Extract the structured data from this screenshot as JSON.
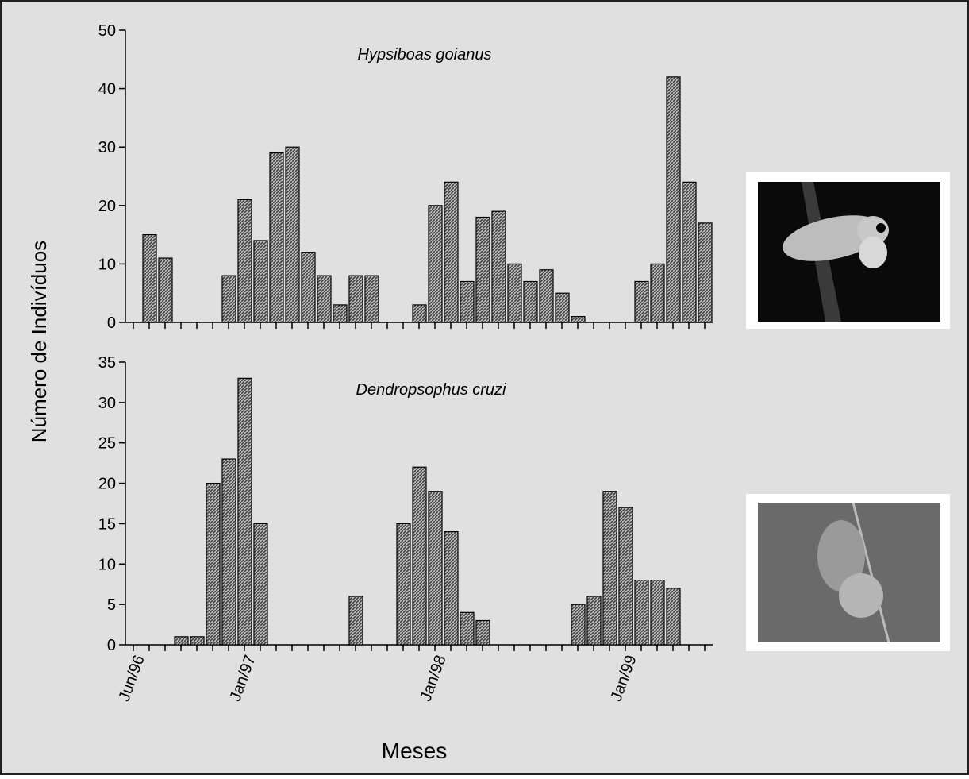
{
  "chart_data": [
    {
      "type": "bar",
      "title": "Hypsiboas goianus",
      "y_label": "Número de Indivíduos",
      "color": "#444444",
      "values": [
        0,
        15,
        11,
        0,
        0,
        0,
        8,
        21,
        14,
        29,
        30,
        12,
        8,
        3,
        8,
        8,
        0,
        0,
        3,
        20,
        24,
        7,
        18,
        19,
        10,
        7,
        9,
        5,
        1,
        0,
        0,
        0,
        7,
        10,
        42,
        24,
        17
      ],
      "ylim": [
        0,
        50
      ],
      "yticks": [
        0,
        10,
        20,
        30,
        40,
        50
      ]
    },
    {
      "type": "bar",
      "title": "Dendropsophus cruzi",
      "x_label": "Meses",
      "color": "#444444",
      "categories": [
        "Jun/96",
        null,
        null,
        null,
        null,
        null,
        null,
        "Jan/97",
        null,
        null,
        null,
        null,
        null,
        null,
        null,
        null,
        null,
        null,
        null,
        "Jan/98",
        null,
        null,
        null,
        null,
        null,
        null,
        null,
        null,
        null,
        null,
        null,
        "Jan/99",
        null,
        null,
        null,
        null,
        null
      ],
      "values": [
        0,
        0,
        0,
        1,
        1,
        20,
        23,
        33,
        15,
        0,
        0,
        0,
        0,
        0,
        6,
        0,
        0,
        15,
        22,
        19,
        14,
        4,
        3,
        0,
        0,
        0,
        0,
        0,
        5,
        6,
        19,
        17,
        8,
        8,
        7,
        0,
        0
      ],
      "ylim": [
        0,
        35
      ],
      "yticks": [
        0,
        5,
        10,
        15,
        20,
        25,
        30,
        35
      ]
    }
  ]
}
